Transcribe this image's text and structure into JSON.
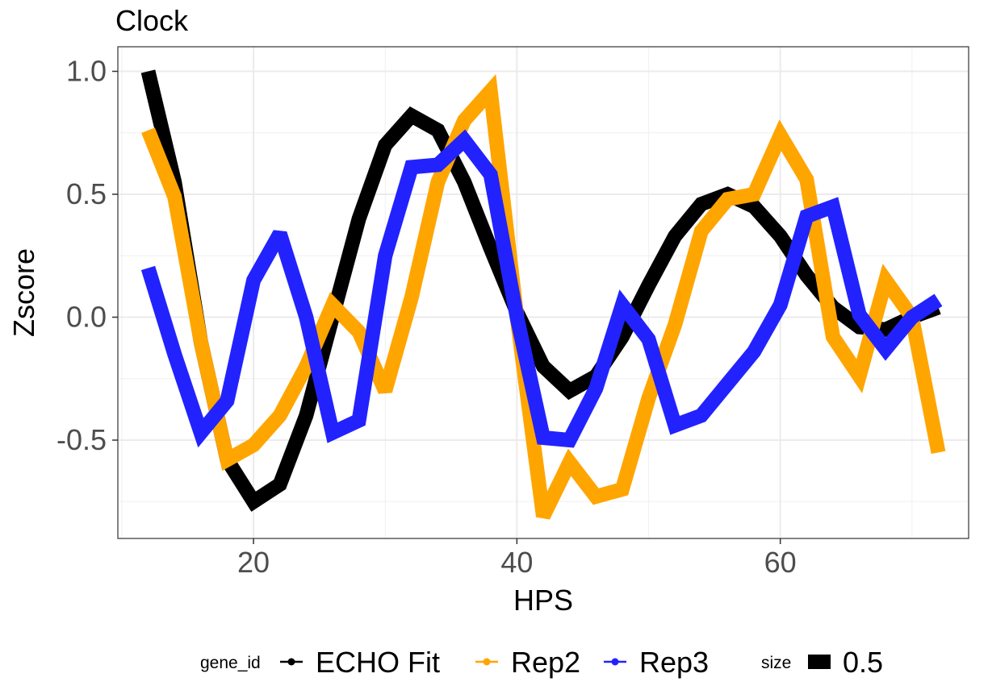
{
  "chart_data": {
    "type": "line",
    "title": "Clock",
    "xlabel": "HPS",
    "ylabel": "Zscore",
    "xlim": [
      9.7,
      74.3
    ],
    "ylim": [
      -0.9,
      1.1
    ],
    "x_ticks": [
      20,
      40,
      60
    ],
    "x_tick_labels": [
      "20",
      "40",
      "60"
    ],
    "y_ticks": [
      1.0,
      0.5,
      0.0,
      -0.5
    ],
    "y_tick_labels": [
      "1.0",
      "0.5",
      "0.0",
      "-0.5"
    ],
    "grid": true,
    "x": [
      12,
      14,
      16,
      18,
      20,
      22,
      24,
      26,
      28,
      30,
      32,
      34,
      36,
      38,
      40,
      42,
      44,
      46,
      48,
      50,
      52,
      54,
      56,
      58,
      60,
      62,
      64,
      66,
      68,
      70,
      72
    ],
    "series": [
      {
        "name": "ECHO Fit",
        "color": "#000000",
        "values": [
          1.0,
          0.55,
          -0.1,
          -0.58,
          -0.75,
          -0.68,
          -0.4,
          0.0,
          0.4,
          0.7,
          0.82,
          0.76,
          0.55,
          0.28,
          0.02,
          -0.2,
          -0.3,
          -0.24,
          -0.08,
          0.13,
          0.33,
          0.46,
          0.5,
          0.45,
          0.33,
          0.17,
          0.04,
          -0.04,
          -0.05,
          0.0,
          0.04
        ]
      },
      {
        "name": "Rep2",
        "color": "#FFA500",
        "values": [
          0.76,
          0.49,
          -0.1,
          -0.58,
          -0.52,
          -0.4,
          -0.2,
          0.05,
          -0.06,
          -0.3,
          0.08,
          0.55,
          0.8,
          0.92,
          0.0,
          -0.81,
          -0.59,
          -0.73,
          -0.7,
          -0.33,
          -0.03,
          0.35,
          0.48,
          0.5,
          0.74,
          0.56,
          -0.08,
          -0.24,
          0.15,
          0.0,
          -0.55
        ]
      },
      {
        "name": "Rep3",
        "color": "#2222FF",
        "values": [
          0.2,
          -0.15,
          -0.47,
          -0.34,
          0.15,
          0.34,
          0.0,
          -0.47,
          -0.42,
          0.25,
          0.61,
          0.62,
          0.72,
          0.58,
          0.0,
          -0.49,
          -0.5,
          -0.29,
          0.05,
          -0.09,
          -0.44,
          -0.4,
          -0.27,
          -0.14,
          0.05,
          0.41,
          0.45,
          0.01,
          -0.13,
          0.0,
          0.07
        ]
      }
    ],
    "legend": {
      "placement": "bottom",
      "title": "gene_id",
      "entries": [
        "ECHO Fit",
        "Rep2",
        "Rep3"
      ],
      "size_title": "size",
      "size_label": "0.5"
    }
  }
}
